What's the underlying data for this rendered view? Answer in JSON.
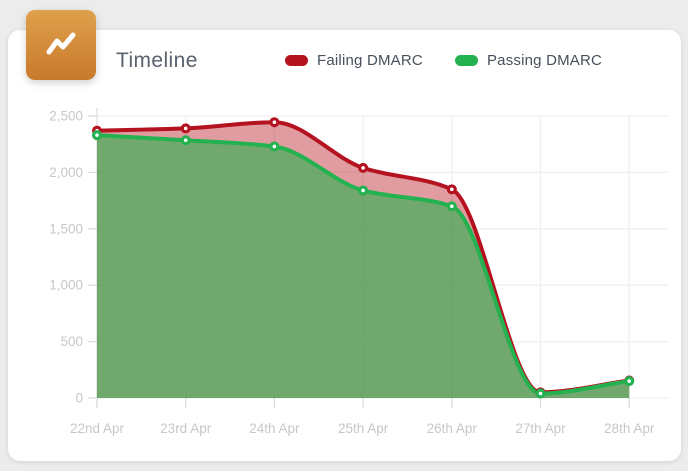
{
  "card": {
    "title": "Timeline",
    "icon": "trend-line-icon"
  },
  "legend": [
    {
      "label": "Failing DMARC",
      "color": "#b5121f"
    },
    {
      "label": "Passing DMARC",
      "color": "#24b14f"
    }
  ],
  "colors": {
    "failing_line": "#b5121f",
    "failing_fill": "rgba(181,18,31,0.42)",
    "passing_line": "#24b14f",
    "passing_fill": "rgba(44,176,77,0.62)",
    "badge_orange": "#cd812f",
    "axis_label": "#c5c7ca",
    "grid_line": "#f0f0f0"
  },
  "chart_data": {
    "type": "area",
    "title": "Timeline",
    "categories": [
      "22nd Apr",
      "23rd Apr",
      "24th Apr",
      "25th Apr",
      "26th Apr",
      "27th Apr",
      "28th Apr"
    ],
    "series": [
      {
        "name": "Failing DMARC",
        "values": [
          2370,
          2390,
          2445,
          2040,
          1850,
          50,
          155
        ],
        "line_color": "#b5121f",
        "fill_color": "rgba(181,18,31,0.42)"
      },
      {
        "name": "Passing DMARC",
        "values": [
          2330,
          2285,
          2230,
          1840,
          1700,
          40,
          150
        ],
        "line_color": "#24b14f",
        "fill_color": "rgba(44,176,77,0.62)"
      }
    ],
    "xlabel": "",
    "ylabel": "",
    "ylim": [
      0,
      2500
    ],
    "yticks": [
      0,
      500,
      1000,
      1500,
      2000,
      2500
    ],
    "ytick_labels": [
      "0",
      "500",
      "1,000",
      "1,500",
      "2,000",
      "2,500"
    ],
    "grid": true,
    "legend_position": "top",
    "curve": "monotone"
  }
}
